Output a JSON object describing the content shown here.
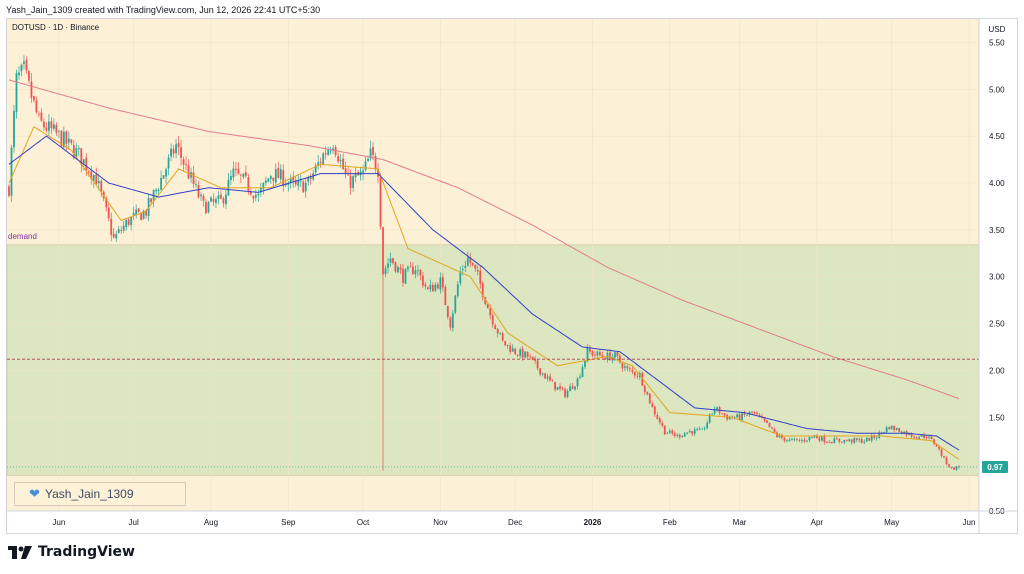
{
  "header": {
    "credit": "Yash_Jain_1309 created with TradingView.com, Jun 12, 2026 22:41 UTC+5:30"
  },
  "symbol_line": "DOTUSD · 1D · Binance",
  "watermark": {
    "text": "Yash_Jain_1309",
    "icon": "blue-heart-icon"
  },
  "footer": {
    "brand": "TradingView",
    "icon": "tradingview-logo-icon"
  },
  "colors": {
    "chart_bg": "#fcf0d7",
    "demand_zone": "#dce6c0",
    "up_candle": "#26a69a",
    "down_candle": "#ef5350",
    "ma_fast": "#e3a51f",
    "ma_mid": "#3040c8",
    "ma_slow": "#e07c8f",
    "zone_label": "#8a2ea8",
    "price_tag": "#26a69a"
  },
  "chart_data": {
    "type": "candlestick",
    "symbol": "DOTUSD",
    "timeframe": "1D",
    "exchange": "Binance",
    "currency_label": "USD",
    "y_range": [
      0.5,
      5.75
    ],
    "y_ticks": [
      5.5,
      5.0,
      4.5,
      4.0,
      3.5,
      3.0,
      2.5,
      2.0,
      1.5,
      1.0,
      0.5
    ],
    "y_tick_labels": [
      "5.50",
      "5.00",
      "4.50",
      "4.00",
      "3.50",
      "3.00",
      "2.50",
      "2.00",
      "1.50",
      "",
      "0.50"
    ],
    "x_tick_labels": [
      "Jun",
      "Jul",
      "Aug",
      "Sep",
      "Oct",
      "Nov",
      "Dec",
      "2026",
      "Feb",
      "Mar",
      "Apr",
      "May",
      "Jun"
    ],
    "x_tick_bold": "2026",
    "last_price": 0.97,
    "last_price_label": "0.97",
    "demand_zone": {
      "label": "demand",
      "top": 3.34,
      "bottom": 0.88
    },
    "horizontal_levels": [
      {
        "value": 2.12,
        "style": "dashed"
      }
    ],
    "price_anchors": [
      [
        0,
        3.95
      ],
      [
        3,
        5.1
      ],
      [
        6,
        5.2
      ],
      [
        12,
        4.65
      ],
      [
        20,
        4.5
      ],
      [
        28,
        4.3
      ],
      [
        35,
        4.05
      ],
      [
        42,
        3.4
      ],
      [
        48,
        3.6
      ],
      [
        55,
        3.7
      ],
      [
        62,
        4.1
      ],
      [
        67,
        4.4
      ],
      [
        72,
        4.1
      ],
      [
        78,
        3.75
      ],
      [
        85,
        3.8
      ],
      [
        90,
        4.1
      ],
      [
        95,
        4.0
      ],
      [
        100,
        3.85
      ],
      [
        105,
        4.1
      ],
      [
        110,
        4.05
      ],
      [
        115,
        3.95
      ],
      [
        120,
        4.0
      ],
      [
        126,
        4.3
      ],
      [
        130,
        4.45
      ],
      [
        136,
        4.0
      ],
      [
        142,
        4.1
      ],
      [
        145,
        4.3
      ],
      [
        148,
        4.15
      ],
      [
        150,
        3.05
      ],
      [
        153,
        3.2
      ],
      [
        158,
        3.0
      ],
      [
        163,
        3.1
      ],
      [
        168,
        2.85
      ],
      [
        173,
        2.95
      ],
      [
        177,
        2.5
      ],
      [
        181,
        3.05
      ],
      [
        184,
        3.2
      ],
      [
        188,
        3.0
      ],
      [
        193,
        2.6
      ],
      [
        198,
        2.3
      ],
      [
        203,
        2.2
      ],
      [
        208,
        2.15
      ],
      [
        213,
        2.0
      ],
      [
        218,
        1.85
      ],
      [
        223,
        1.75
      ],
      [
        228,
        1.9
      ],
      [
        232,
        2.2
      ],
      [
        238,
        2.15
      ],
      [
        243,
        2.15
      ],
      [
        248,
        2.0
      ],
      [
        253,
        1.95
      ],
      [
        258,
        1.6
      ],
      [
        263,
        1.35
      ],
      [
        268,
        1.3
      ],
      [
        273,
        1.35
      ],
      [
        278,
        1.35
      ],
      [
        283,
        1.6
      ],
      [
        288,
        1.5
      ],
      [
        293,
        1.5
      ],
      [
        298,
        1.55
      ],
      [
        303,
        1.45
      ],
      [
        308,
        1.3
      ],
      [
        313,
        1.25
      ],
      [
        318,
        1.25
      ],
      [
        323,
        1.3
      ],
      [
        328,
        1.25
      ],
      [
        333,
        1.25
      ],
      [
        338,
        1.25
      ],
      [
        343,
        1.25
      ],
      [
        348,
        1.3
      ],
      [
        353,
        1.4
      ],
      [
        358,
        1.35
      ],
      [
        363,
        1.3
      ],
      [
        368,
        1.3
      ],
      [
        372,
        1.2
      ],
      [
        375,
        1.05
      ],
      [
        378,
        0.95
      ],
      [
        381,
        0.97
      ]
    ],
    "moving_averages": [
      {
        "color": "#e3a51f",
        "anchors": [
          [
            0,
            4.0
          ],
          [
            10,
            4.6
          ],
          [
            25,
            4.35
          ],
          [
            45,
            3.6
          ],
          [
            55,
            3.7
          ],
          [
            68,
            4.15
          ],
          [
            85,
            3.95
          ],
          [
            105,
            3.95
          ],
          [
            125,
            4.2
          ],
          [
            148,
            4.15
          ],
          [
            160,
            3.3
          ],
          [
            185,
            3.0
          ],
          [
            200,
            2.4
          ],
          [
            220,
            2.05
          ],
          [
            240,
            2.15
          ],
          [
            250,
            2.05
          ],
          [
            265,
            1.55
          ],
          [
            290,
            1.5
          ],
          [
            310,
            1.3
          ],
          [
            330,
            1.3
          ],
          [
            350,
            1.3
          ],
          [
            370,
            1.25
          ],
          [
            381,
            1.05
          ]
        ]
      },
      {
        "color": "#3040c8",
        "anchors": [
          [
            0,
            4.2
          ],
          [
            15,
            4.5
          ],
          [
            40,
            4.0
          ],
          [
            60,
            3.85
          ],
          [
            80,
            3.95
          ],
          [
            100,
            3.9
          ],
          [
            125,
            4.1
          ],
          [
            148,
            4.1
          ],
          [
            170,
            3.5
          ],
          [
            190,
            3.1
          ],
          [
            210,
            2.6
          ],
          [
            230,
            2.25
          ],
          [
            245,
            2.2
          ],
          [
            260,
            1.9
          ],
          [
            275,
            1.6
          ],
          [
            295,
            1.55
          ],
          [
            320,
            1.38
          ],
          [
            340,
            1.33
          ],
          [
            360,
            1.33
          ],
          [
            372,
            1.3
          ],
          [
            381,
            1.15
          ]
        ]
      },
      {
        "color": "#e07c8f",
        "anchors": [
          [
            0,
            5.1
          ],
          [
            40,
            4.8
          ],
          [
            80,
            4.55
          ],
          [
            120,
            4.4
          ],
          [
            150,
            4.25
          ],
          [
            180,
            3.95
          ],
          [
            210,
            3.55
          ],
          [
            240,
            3.1
          ],
          [
            270,
            2.75
          ],
          [
            300,
            2.45
          ],
          [
            330,
            2.15
          ],
          [
            360,
            1.9
          ],
          [
            381,
            1.7
          ]
        ]
      }
    ]
  }
}
